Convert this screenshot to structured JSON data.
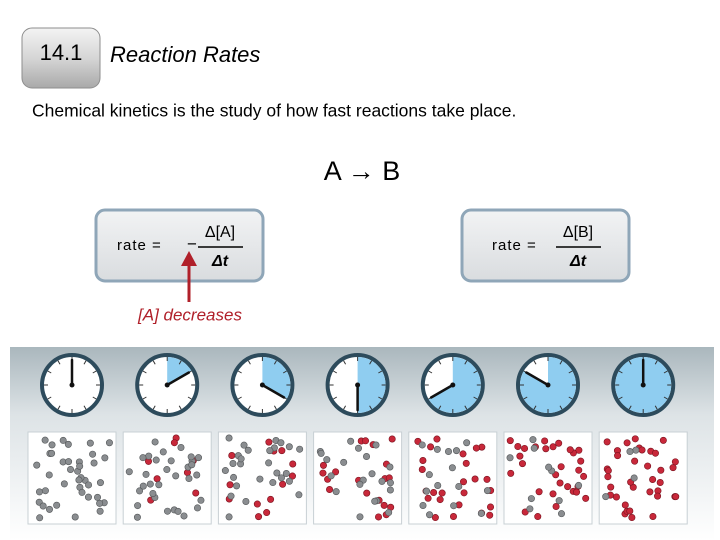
{
  "header": {
    "badge": "14.1",
    "title": "Reaction Rates"
  },
  "intro": "Chemical kinetics is the study of how fast reactions take place.",
  "equation": "A → B",
  "formulas": [
    {
      "lhs": "rate =",
      "sign": "−",
      "numerator": "Δ[A]",
      "denominator": "Δt"
    },
    {
      "lhs": "rate =",
      "numerator": "Δ[B]",
      "denominator": "Δt"
    }
  ],
  "annotation": "[A] decreases"
}
